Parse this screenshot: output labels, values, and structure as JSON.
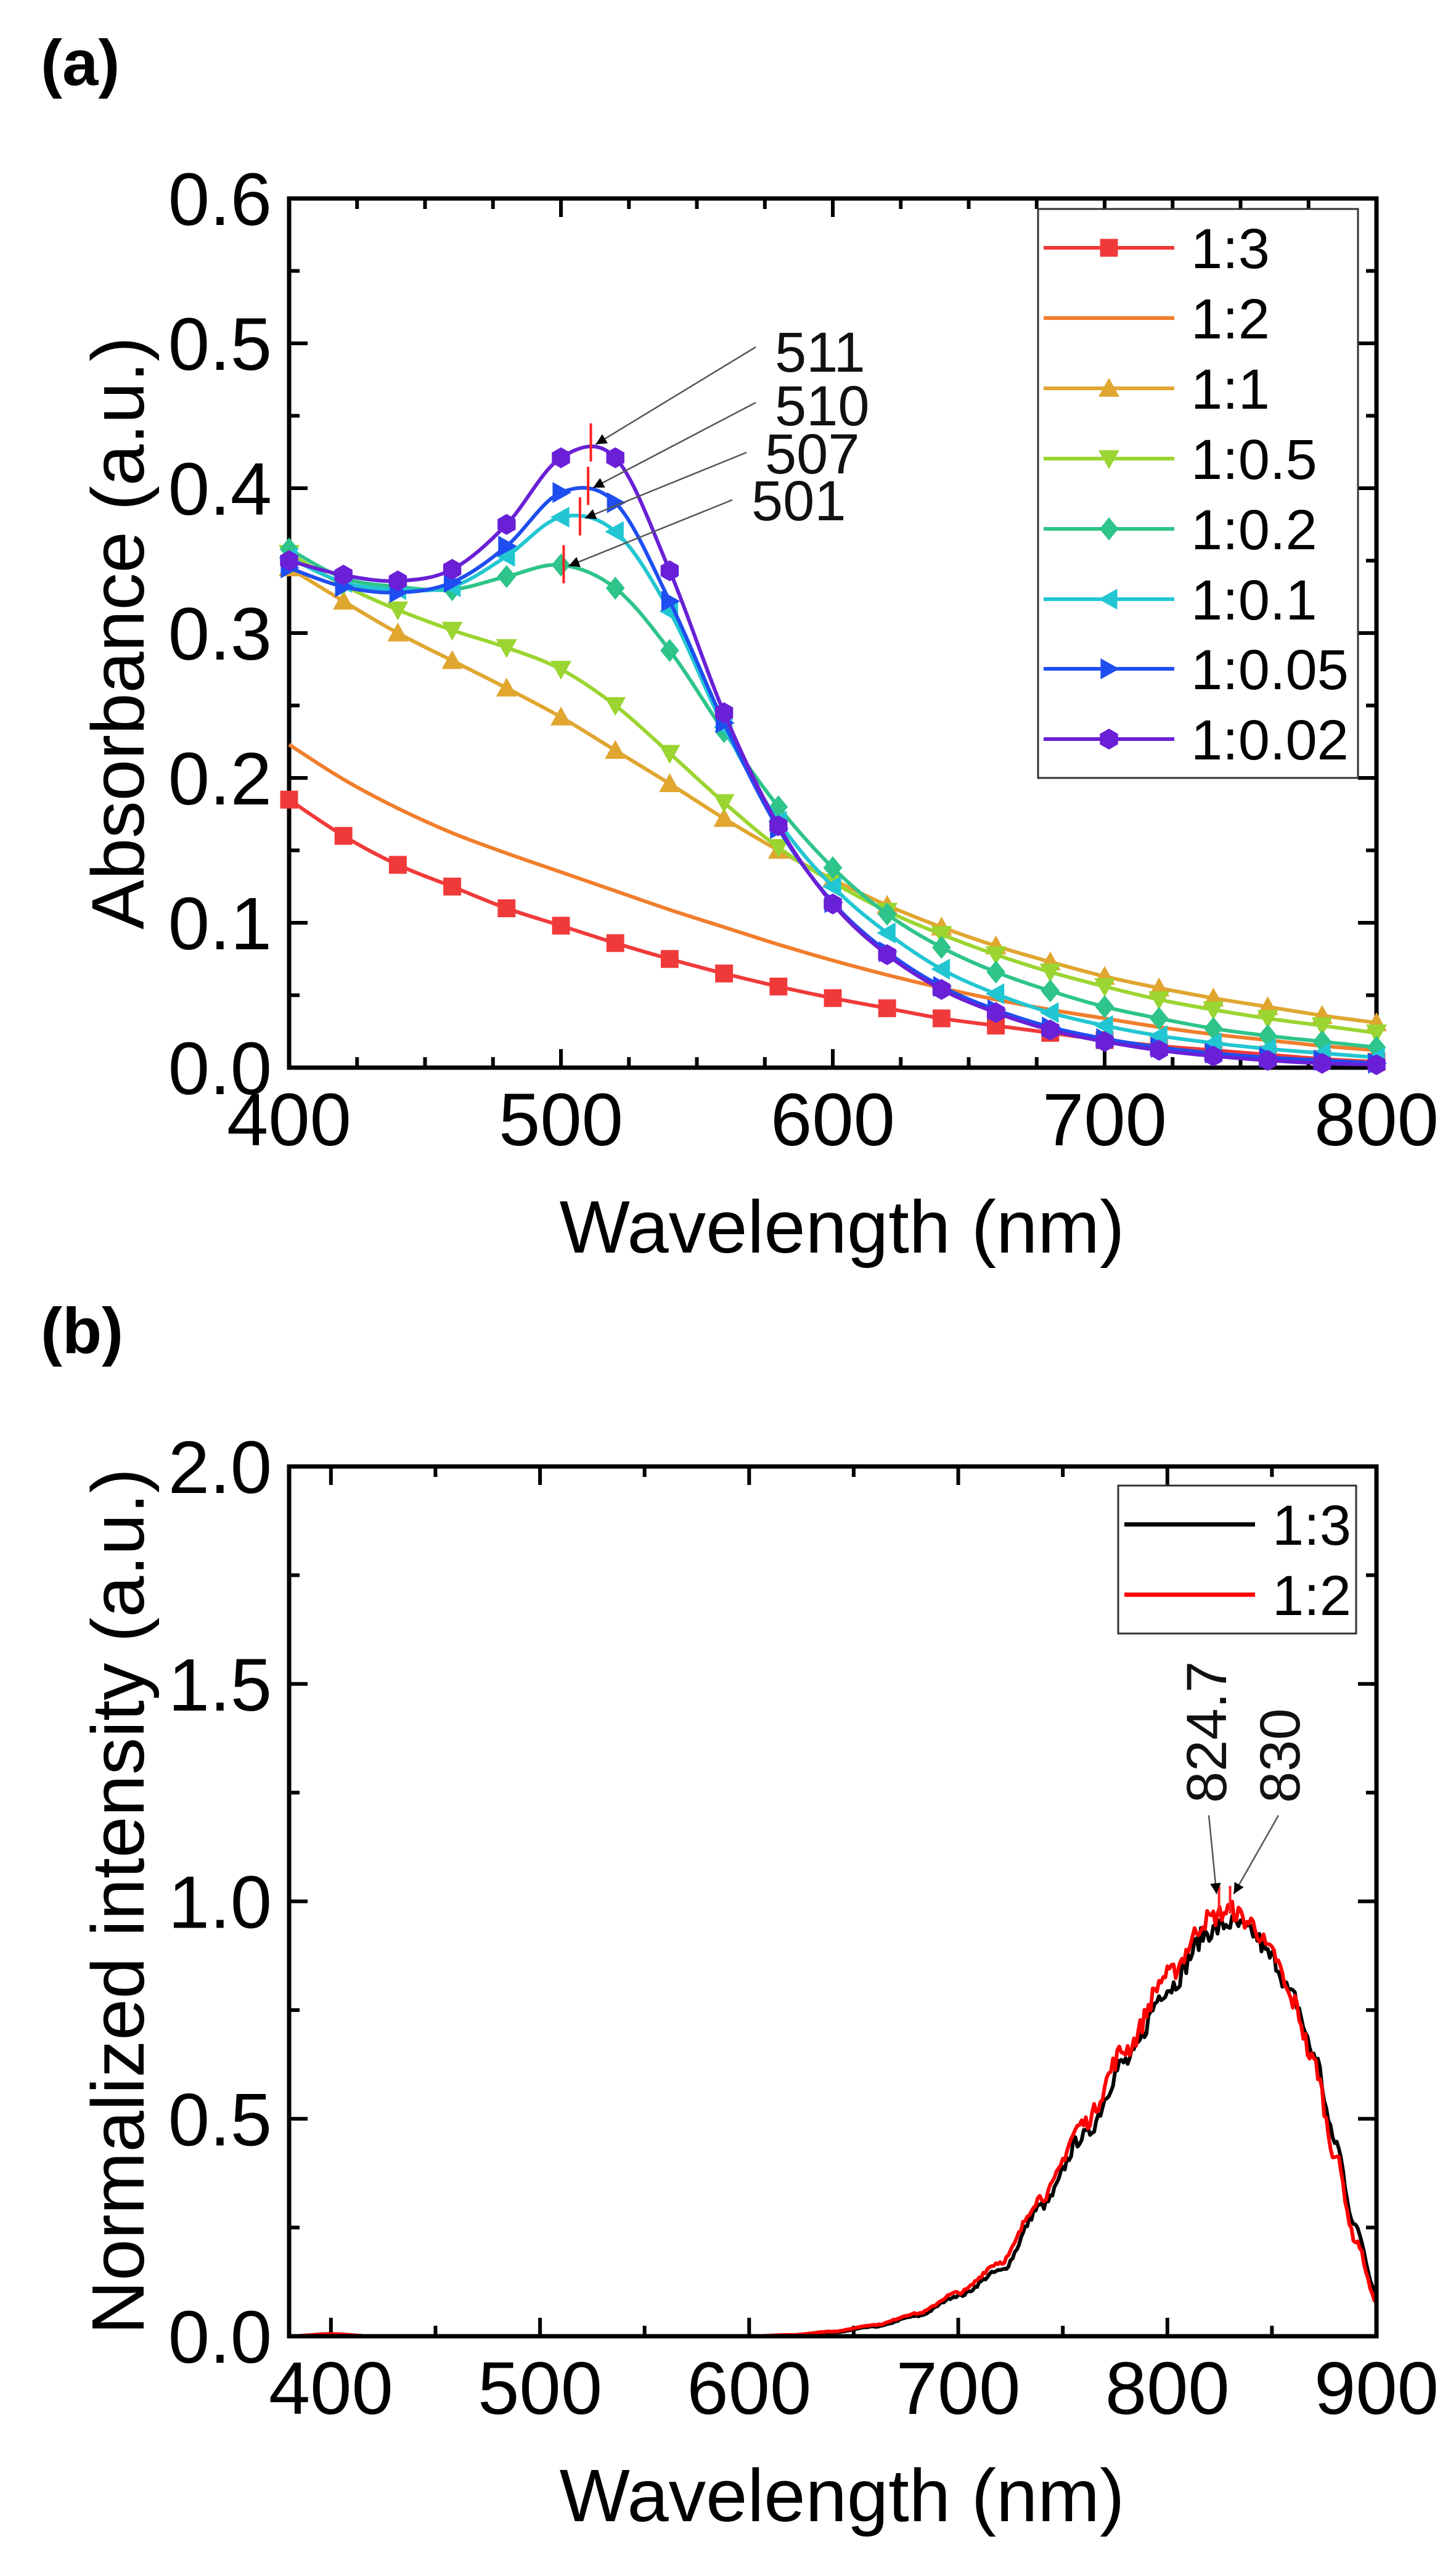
{
  "chart_data": [
    {
      "panel_label": "(a)",
      "type": "line",
      "xlabel": "Wavelength (nm)",
      "ylabel": "Absorbance (a.u.)",
      "xlim": [
        400,
        800
      ],
      "ylim": [
        0,
        0.6
      ],
      "xticks": [
        "400",
        "500",
        "600",
        "700",
        "800"
      ],
      "yticks": [
        "0.0",
        "0.1",
        "0.2",
        "0.3",
        "0.4",
        "0.5",
        "0.6"
      ],
      "legend_position": "top-right",
      "x": [
        400,
        420,
        440,
        460,
        480,
        500,
        520,
        540,
        560,
        580,
        600,
        620,
        640,
        660,
        680,
        700,
        720,
        740,
        760,
        780,
        800
      ],
      "series": [
        {
          "name": "1:3",
          "color": "#f03a3a",
          "marker": "square",
          "values": [
            0.185,
            0.16,
            0.14,
            0.125,
            0.11,
            0.098,
            0.086,
            0.075,
            0.065,
            0.056,
            0.048,
            0.041,
            0.034,
            0.029,
            0.024,
            0.019,
            0.015,
            0.012,
            0.009,
            0.006,
            0.004
          ]
        },
        {
          "name": "1:2",
          "color": "#f07e2c",
          "marker": "circle",
          "values": [
            0.223,
            0.199,
            0.179,
            0.162,
            0.148,
            0.135,
            0.122,
            0.109,
            0.097,
            0.085,
            0.074,
            0.064,
            0.055,
            0.047,
            0.04,
            0.034,
            0.028,
            0.023,
            0.019,
            0.015,
            0.012
          ]
        },
        {
          "name": "1:1",
          "color": "#e0a630",
          "marker": "triangle-up",
          "values": [
            0.345,
            0.322,
            0.3,
            0.281,
            0.262,
            0.242,
            0.219,
            0.196,
            0.172,
            0.15,
            0.13,
            0.112,
            0.097,
            0.084,
            0.073,
            0.063,
            0.055,
            0.048,
            0.042,
            0.036,
            0.031
          ]
        },
        {
          "name": "1:0.5",
          "color": "#9bd531",
          "marker": "triangle-down",
          "values": [
            0.355,
            0.333,
            0.316,
            0.302,
            0.29,
            0.275,
            0.25,
            0.217,
            0.183,
            0.152,
            0.128,
            0.108,
            0.092,
            0.078,
            0.066,
            0.056,
            0.047,
            0.04,
            0.034,
            0.029,
            0.024
          ]
        },
        {
          "name": "1:0.2",
          "color": "#2ec48a",
          "marker": "diamond",
          "values": [
            0.358,
            0.338,
            0.332,
            0.33,
            0.339,
            0.347,
            0.331,
            0.288,
            0.232,
            0.18,
            0.138,
            0.106,
            0.083,
            0.066,
            0.053,
            0.042,
            0.034,
            0.027,
            0.022,
            0.018,
            0.014
          ]
        },
        {
          "name": "1:0.1",
          "color": "#22c6d2",
          "marker": "triangle-left",
          "values": [
            0.352,
            0.335,
            0.33,
            0.332,
            0.353,
            0.38,
            0.37,
            0.315,
            0.235,
            0.17,
            0.125,
            0.093,
            0.068,
            0.051,
            0.038,
            0.029,
            0.022,
            0.017,
            0.013,
            0.01,
            0.007
          ]
        },
        {
          "name": "1:0.05",
          "color": "#1f4ef0",
          "marker": "triangle-right",
          "values": [
            0.345,
            0.332,
            0.328,
            0.335,
            0.36,
            0.397,
            0.39,
            0.322,
            0.238,
            0.165,
            0.114,
            0.08,
            0.056,
            0.04,
            0.028,
            0.02,
            0.014,
            0.01,
            0.007,
            0.005,
            0.003
          ]
        },
        {
          "name": "1:0.02",
          "color": "#6a20d6",
          "marker": "hexagon",
          "values": [
            0.35,
            0.34,
            0.336,
            0.344,
            0.375,
            0.421,
            0.421,
            0.343,
            0.245,
            0.167,
            0.113,
            0.078,
            0.054,
            0.038,
            0.026,
            0.018,
            0.012,
            0.008,
            0.005,
            0.003,
            0.002
          ]
        }
      ],
      "annotations": [
        {
          "text": "511",
          "x": 511,
          "y": 0.432
        },
        {
          "text": "510",
          "x": 510,
          "y": 0.402
        },
        {
          "text": "507",
          "x": 507,
          "y": 0.381
        },
        {
          "text": "501",
          "x": 501,
          "y": 0.348
        }
      ]
    },
    {
      "panel_label": "(b)",
      "type": "line",
      "xlabel": "Wavelength (nm)",
      "ylabel": "Normalized intensity (a.u.)",
      "xlim": [
        380,
        900
      ],
      "ylim": [
        0,
        2.0
      ],
      "xticks": [
        "400",
        "500",
        "600",
        "700",
        "800",
        "900"
      ],
      "yticks": [
        "0.0",
        "0.5",
        "1.0",
        "1.5",
        "2.0"
      ],
      "legend_position": "top-right",
      "x": [
        380,
        400,
        420,
        600,
        620,
        640,
        660,
        680,
        700,
        720,
        740,
        760,
        780,
        800,
        820,
        830,
        840,
        850,
        860,
        870,
        880,
        890,
        900
      ],
      "series": [
        {
          "name": "1:3",
          "color": "#000000",
          "values": [
            0,
            0.005,
            0,
            0,
            0.002,
            0.009,
            0.022,
            0.046,
            0.093,
            0.15,
            0.3,
            0.46,
            0.63,
            0.8,
            0.93,
            0.95,
            0.93,
            0.87,
            0.78,
            0.65,
            0.45,
            0.25,
            0.1
          ]
        },
        {
          "name": "1:2",
          "color": "#ff0000",
          "values": [
            0,
            0.005,
            0,
            0,
            0.003,
            0.011,
            0.026,
            0.052,
            0.1,
            0.17,
            0.32,
            0.49,
            0.66,
            0.83,
            0.96,
            0.98,
            0.95,
            0.88,
            0.77,
            0.63,
            0.42,
            0.22,
            0.08
          ]
        }
      ],
      "annotations": [
        {
          "text": "824.7",
          "x": 824.7,
          "y": 1.0
        },
        {
          "text": "830",
          "x": 830,
          "y": 1.0
        }
      ]
    }
  ]
}
